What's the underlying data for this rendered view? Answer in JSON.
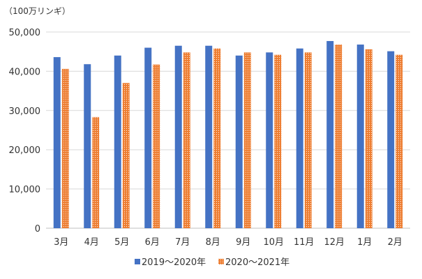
{
  "chart_data": {
    "type": "bar",
    "title": "",
    "unit_label": "（100万リンギ）",
    "xlabel": "",
    "ylabel": "",
    "categories": [
      "3月",
      "4月",
      "5月",
      "6月",
      "7月",
      "8月",
      "9月",
      "10月",
      "11月",
      "12月",
      "1月",
      "2月"
    ],
    "series": [
      {
        "name": "2019～2020年",
        "values": [
          43600,
          41800,
          44000,
          46000,
          46500,
          46500,
          44000,
          44800,
          45800,
          47700,
          46800,
          45100
        ]
      },
      {
        "name": "2020～2021年",
        "values": [
          40600,
          28300,
          37000,
          41700,
          44800,
          45800,
          44800,
          44200,
          44800,
          46800,
          45600,
          44200
        ]
      }
    ],
    "ylim": [
      0,
      50000
    ],
    "yticks": [
      "0",
      "10,000",
      "20,000",
      "30,000",
      "40,000",
      "50,000"
    ],
    "grid": true,
    "legend_position": "bottom",
    "colors": {
      "series1": "#4472c4",
      "series2": "#ed7d31"
    },
    "series2_pattern": "dotted-hatch"
  }
}
